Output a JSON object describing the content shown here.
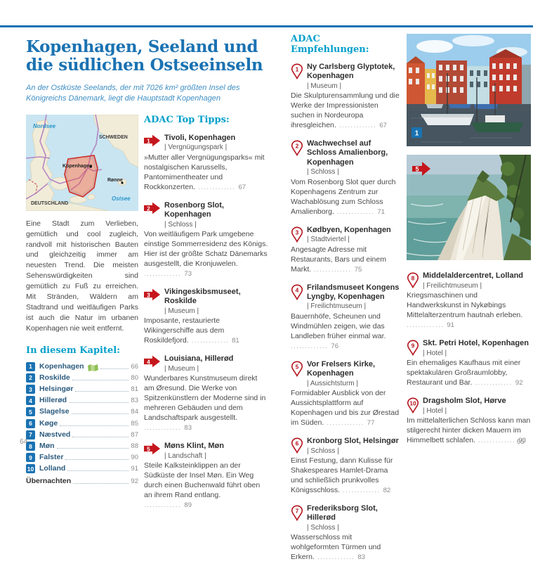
{
  "page": {
    "left_number": "64",
    "right_number": "65"
  },
  "header": {
    "title": "Kopenhagen, Seeland und die südlichen Ostseeinseln",
    "subtitle": "An der Ostküste Seelands, der mit 7026 km² größten Insel des Königreichs Dänemark, liegt die Hauptstadt Kopenhagen"
  },
  "map": {
    "labels": {
      "north_sea": "Nordsee",
      "sweden": "SCHWEDEN",
      "germany": "DEUTSCHLAND",
      "baltic_sea": "Ostsee",
      "copenhagen": "Kopenhagen",
      "ronne": "Rønne"
    }
  },
  "intro": "Eine Stadt zum Verlieben, gemütlich und cool zugleich, randvoll mit historischen Bauten und gleichzeitig immer am neuesten Trend. Die meisten Sehenswürdigkeiten sind gemütlich zu Fuß zu erreichen. Mit Stränden, Wäldern am Stadtrand und weitläufigen Parks ist auch die Natur im urbanen Kopenhagen nie weit entfernt.",
  "chapter": {
    "heading": "In diesem Kapitel:",
    "items": [
      {
        "num": "1",
        "name": "Kopenhagen",
        "page": "66"
      },
      {
        "num": "2",
        "name": "Roskilde",
        "page": "80"
      },
      {
        "num": "3",
        "name": "Helsingør",
        "page": "81"
      },
      {
        "num": "4",
        "name": "Hillerød",
        "page": "83"
      },
      {
        "num": "5",
        "name": "Slagelse",
        "page": "84"
      },
      {
        "num": "6",
        "name": "Køge",
        "page": "85"
      },
      {
        "num": "7",
        "name": "Næstved",
        "page": "87"
      },
      {
        "num": "8",
        "name": "Møn",
        "page": "88"
      },
      {
        "num": "9",
        "name": "Falster",
        "page": "90"
      },
      {
        "num": "10",
        "name": "Lolland",
        "page": "91"
      }
    ],
    "footer": {
      "name": "Übernachten",
      "page": "92"
    }
  },
  "top_tipps": {
    "heading": "ADAC Top Tipps:",
    "items": [
      {
        "num": "1",
        "title": "Tivoli, Kopenhagen",
        "category": "Vergnügungspark",
        "desc": "»Mutter aller Vergnügungsparks« mit nostalgischen Karussells, Pantomimentheater und Rockkonzerten.",
        "page": "67"
      },
      {
        "num": "2",
        "title": "Rosenborg Slot, Kopenhagen",
        "category": "Schloss",
        "desc": "Von weitläufigem Park umgebene einstige Sommerresidenz des Königs. Hier ist der größte Schatz Dänemarks ausgestellt, die Kronjuwelen.",
        "page": "73"
      },
      {
        "num": "3",
        "title": "Vikingeskibsmuseet, Roskilde",
        "category": "Museum",
        "desc": "Imposante, restaurierte Wikingerschiffe aus dem Roskildefjord.",
        "page": "81"
      },
      {
        "num": "4",
        "title": "Louisiana, Hillerød",
        "category": "Museum",
        "desc": "Wunderbares Kunstmuseum direkt am Øresund. Die Werke von Spitzenkünstlern der Moderne sind in mehreren Gebäuden und dem Landschaftspark ausgestellt.",
        "page": "83"
      },
      {
        "num": "5",
        "title": "Møns Klint, Møn",
        "category": "Landschaft",
        "desc": "Steile Kalksteinklippen an der Südküste der Insel Møn. Ein Weg durch einen Buchenwald führt oben an ihrem Rand entlang.",
        "page": "89"
      }
    ]
  },
  "empfehlungen": {
    "heading": "ADAC Empfehlungen:",
    "items": [
      {
        "num": "1",
        "title": "Ny Carlsberg Glyptotek, Kopenhagen",
        "category": "Museum",
        "desc": "Die Skulpturensammlung und die Werke der Impressionisten suchen in Nordeuropa ihresgleichen.",
        "page": "67"
      },
      {
        "num": "2",
        "title": "Wachwechsel auf Schloss Amalienborg, Kopenhagen",
        "category": "Schloss",
        "desc": "Vom Rosenborg Slot quer durch Kopenhagens Zentrum zur Wachablösung zum Schloss Amalienborg.",
        "page": "71"
      },
      {
        "num": "3",
        "title": "Kødbyen, Kopenhagen",
        "category": "Stadtviertel",
        "desc": "Angesagte Adresse mit Restaurants, Bars und einem Markt.",
        "page": "75"
      },
      {
        "num": "4",
        "title": "Frilandsmuseet Kongens Lyngby, Kopenhagen",
        "category": "Freilichtmuseum",
        "desc": "Bauernhöfe, Scheunen und Windmühlen zeigen, wie das Landleben früher einmal war.",
        "page": "76"
      },
      {
        "num": "5",
        "title": "Vor Frelsers Kirke, Kopenhagen",
        "category": "Aussichtsturm",
        "desc": "Formidabler Ausblick von der Aussichtsplattform auf Kopenhagen und bis zur Ørestad im Süden.",
        "page": "77"
      },
      {
        "num": "6",
        "title": "Kronborg Slot, Helsingør",
        "category": "Schloss",
        "desc": "Einst Festung, dann Kulisse für Shakespeares Hamlet-Drama und schließlich prunkvolles Königsschloss.",
        "page": "82"
      },
      {
        "num": "7",
        "title": "Frederiksborg Slot, Hillerød",
        "category": "Schloss",
        "desc": "Wasserschloss mit wohlgeformten Türmen und Erkern.",
        "page": "83"
      },
      {
        "num": "8",
        "title": "Middelaldercentret, Lolland",
        "category": "Freilichtmuseum",
        "desc": "Kriegsmaschinen und Handwerkskunst in Nykøbings Mittelalterzentrum hautnah erleben.",
        "page": "91"
      },
      {
        "num": "9",
        "title": "Skt. Petri Hotel, Kopenhagen",
        "category": "Hotel",
        "desc": "Ein ehemaliges Kaufhaus mit einer spektakulären Großraumlobby, Restaurant und Bar.",
        "page": "92"
      },
      {
        "num": "10",
        "title": "Dragsholm Slot, Hørve",
        "category": "Hotel",
        "desc": "Im mittelalterlichen Schloss kann man stilgerecht hinter dicken Mauern im Himmelbett schlafen.",
        "page": "93"
      }
    ]
  },
  "photos": {
    "nyhavn_badge": "1",
    "klint_badge": "5"
  },
  "colors": {
    "accent_blue": "#1a72b2",
    "cyan": "#009fca",
    "adac_red": "#c5161d"
  }
}
